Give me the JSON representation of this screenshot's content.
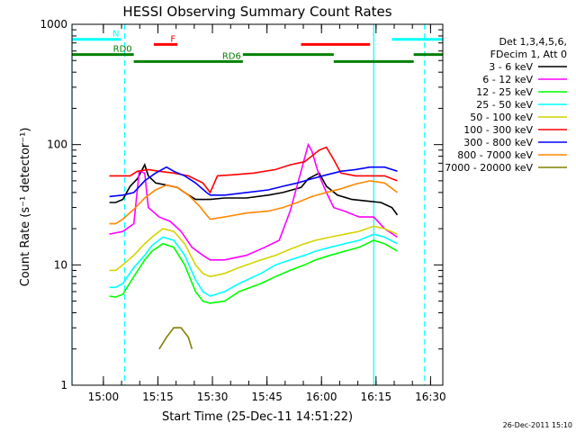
{
  "chart_data": {
    "type": "line",
    "title": "HESSI Observing Summary Count Rates",
    "xlabel": "Start Time (25-Dec-11 14:51:22)",
    "ylabel": "Count Rate (s⁻¹ detector⁻¹)",
    "y_scale": "log",
    "x_unit": "minutes after 14:51:22 (axis printed as clock time)",
    "xlim": [
      0,
      102
    ],
    "ylim": [
      1,
      1000
    ],
    "x_ticks": [
      "15:00",
      "15:15",
      "15:30",
      "15:45",
      "16:00",
      "16:15",
      "16:30"
    ],
    "y_ticks": [
      "1",
      "10",
      "100",
      "1000"
    ],
    "legend": {
      "placement": "right",
      "header": [
        "Det 1,3,4,5,6,",
        "FDecim 1, Att 0"
      ]
    },
    "series": [
      {
        "name": "3 - 6 keV",
        "color": "#000000",
        "points": [
          [
            10.3,
            33
          ],
          [
            12,
            33
          ],
          [
            14,
            35
          ],
          [
            16,
            45
          ],
          [
            18,
            52
          ],
          [
            20,
            68
          ],
          [
            21,
            55
          ],
          [
            23,
            48
          ],
          [
            26,
            46
          ],
          [
            29,
            44
          ],
          [
            31,
            40
          ],
          [
            34,
            35
          ],
          [
            38,
            35
          ],
          [
            42,
            36
          ],
          [
            48,
            36
          ],
          [
            54,
            38
          ],
          [
            58,
            40
          ],
          [
            63,
            44
          ],
          [
            65,
            52
          ],
          [
            68,
            58
          ],
          [
            70,
            45
          ],
          [
            73,
            38
          ],
          [
            77,
            35
          ],
          [
            81,
            34
          ],
          [
            85,
            33
          ],
          [
            88,
            30
          ],
          [
            89.5,
            26
          ]
        ]
      },
      {
        "name": "6 - 12 keV",
        "color": "#ff00ff",
        "points": [
          [
            10.3,
            18
          ],
          [
            14,
            19
          ],
          [
            17,
            22
          ],
          [
            18.5,
            60
          ],
          [
            20,
            58
          ],
          [
            21,
            30
          ],
          [
            24,
            25
          ],
          [
            27,
            23
          ],
          [
            30,
            19
          ],
          [
            33,
            14
          ],
          [
            36,
            12
          ],
          [
            38,
            11
          ],
          [
            42,
            11
          ],
          [
            48,
            12
          ],
          [
            53,
            14
          ],
          [
            57,
            16
          ],
          [
            60,
            28
          ],
          [
            63,
            60
          ],
          [
            65,
            100
          ],
          [
            66,
            88
          ],
          [
            68,
            55
          ],
          [
            70,
            40
          ],
          [
            72,
            30
          ],
          [
            75,
            28
          ],
          [
            79,
            25
          ],
          [
            83,
            25
          ],
          [
            86,
            20
          ],
          [
            89.5,
            17
          ]
        ]
      },
      {
        "name": "12 - 25 keV",
        "color": "#00ff00",
        "points": [
          [
            10.3,
            5.5
          ],
          [
            12,
            5.4
          ],
          [
            14,
            5.7
          ],
          [
            17,
            8
          ],
          [
            20,
            11
          ],
          [
            22,
            13
          ],
          [
            25,
            15
          ],
          [
            28,
            14
          ],
          [
            31,
            10
          ],
          [
            34,
            6
          ],
          [
            36,
            5
          ],
          [
            38,
            4.8
          ],
          [
            42,
            5
          ],
          [
            46,
            6
          ],
          [
            52,
            7
          ],
          [
            56,
            8
          ],
          [
            60,
            9
          ],
          [
            64,
            10
          ],
          [
            67,
            11
          ],
          [
            71,
            12
          ],
          [
            75,
            13
          ],
          [
            79,
            14
          ],
          [
            83,
            16
          ],
          [
            86,
            15
          ],
          [
            89.5,
            13
          ]
        ]
      },
      {
        "name": "25 - 50 keV",
        "color": "#00ffff",
        "points": [
          [
            10.3,
            6.5
          ],
          [
            12,
            6.5
          ],
          [
            14,
            7
          ],
          [
            17,
            9.5
          ],
          [
            20,
            12
          ],
          [
            22,
            14.5
          ],
          [
            25,
            17
          ],
          [
            28,
            16
          ],
          [
            31,
            12
          ],
          [
            34,
            7.5
          ],
          [
            36,
            6
          ],
          [
            38,
            5.5
          ],
          [
            42,
            6
          ],
          [
            46,
            7
          ],
          [
            52,
            8.5
          ],
          [
            56,
            10
          ],
          [
            60,
            11
          ],
          [
            64,
            12
          ],
          [
            67,
            13
          ],
          [
            71,
            14
          ],
          [
            75,
            15
          ],
          [
            79,
            16
          ],
          [
            83,
            18
          ],
          [
            86,
            17
          ],
          [
            89.5,
            15
          ]
        ]
      },
      {
        "name": "50 - 100 keV",
        "color": "#d4d400",
        "points": [
          [
            10.3,
            9
          ],
          [
            12,
            9
          ],
          [
            14,
            10
          ],
          [
            17,
            12
          ],
          [
            20,
            15
          ],
          [
            22,
            17
          ],
          [
            25,
            20
          ],
          [
            28,
            19
          ],
          [
            31,
            15
          ],
          [
            34,
            10
          ],
          [
            36,
            8.5
          ],
          [
            38,
            8
          ],
          [
            42,
            8.5
          ],
          [
            46,
            9.5
          ],
          [
            52,
            11
          ],
          [
            56,
            12
          ],
          [
            60,
            13.5
          ],
          [
            64,
            15
          ],
          [
            67,
            16
          ],
          [
            71,
            17
          ],
          [
            75,
            18
          ],
          [
            79,
            19
          ],
          [
            83,
            21
          ],
          [
            86,
            20
          ],
          [
            89.5,
            18
          ]
        ]
      },
      {
        "name": "100 - 300 keV",
        "color": "#ff0000",
        "points": [
          [
            10.3,
            55
          ],
          [
            16,
            55
          ],
          [
            18,
            60
          ],
          [
            21,
            62
          ],
          [
            24,
            60
          ],
          [
            28,
            58
          ],
          [
            32,
            55
          ],
          [
            36,
            48
          ],
          [
            38,
            40
          ],
          [
            40,
            55
          ],
          [
            44,
            56
          ],
          [
            50,
            58
          ],
          [
            56,
            62
          ],
          [
            60,
            68
          ],
          [
            64,
            72
          ],
          [
            68,
            90
          ],
          [
            70,
            95
          ],
          [
            72,
            75
          ],
          [
            74,
            58
          ],
          [
            78,
            55
          ],
          [
            82,
            55
          ],
          [
            86,
            55
          ],
          [
            89.5,
            50
          ]
        ]
      },
      {
        "name": "300 - 800 keV",
        "color": "#0000ff",
        "points": [
          [
            10.3,
            37
          ],
          [
            14,
            38
          ],
          [
            17,
            40
          ],
          [
            20,
            50
          ],
          [
            23,
            58
          ],
          [
            26,
            65
          ],
          [
            28,
            60
          ],
          [
            31,
            55
          ],
          [
            34,
            48
          ],
          [
            37,
            40
          ],
          [
            38,
            38
          ],
          [
            42,
            38
          ],
          [
            48,
            40
          ],
          [
            54,
            42
          ],
          [
            58,
            45
          ],
          [
            62,
            48
          ],
          [
            66,
            52
          ],
          [
            70,
            56
          ],
          [
            74,
            60
          ],
          [
            78,
            62
          ],
          [
            82,
            65
          ],
          [
            86,
            65
          ],
          [
            89.5,
            60
          ]
        ]
      },
      {
        "name": "800 - 7000 keV",
        "color": "#ff8800",
        "points": [
          [
            10.3,
            22
          ],
          [
            12,
            22
          ],
          [
            14,
            24
          ],
          [
            17,
            29
          ],
          [
            20,
            36
          ],
          [
            23,
            42
          ],
          [
            26,
            46
          ],
          [
            29,
            44
          ],
          [
            32,
            38
          ],
          [
            35,
            31
          ],
          [
            37,
            26
          ],
          [
            38,
            24
          ],
          [
            42,
            25
          ],
          [
            48,
            27
          ],
          [
            54,
            28
          ],
          [
            58,
            30
          ],
          [
            62,
            33
          ],
          [
            66,
            37
          ],
          [
            70,
            40
          ],
          [
            74,
            43
          ],
          [
            78,
            47
          ],
          [
            82,
            50
          ],
          [
            86,
            48
          ],
          [
            89.5,
            40
          ]
        ]
      },
      {
        "name": "7000 - 20000 keV",
        "color": "#808000",
        "points": [
          [
            24,
            2
          ],
          [
            26,
            2.5
          ],
          [
            28,
            3
          ],
          [
            30,
            3
          ],
          [
            32,
            2.5
          ],
          [
            33,
            2
          ]
        ]
      }
    ],
    "annotations": [
      {
        "label": "N",
        "color": "#00ffff",
        "x_range": [
          0,
          13.5
        ],
        "y": 750
      },
      {
        "label": "",
        "color": "#00ffff",
        "x_range": [
          88,
          102
        ],
        "y": 750
      },
      {
        "label": "F",
        "color": "#ff0000",
        "x_range": [
          22.5,
          29
        ],
        "y": 680
      },
      {
        "label": "",
        "color": "#ff0000",
        "x_range": [
          63,
          82
        ],
        "y": 680
      },
      {
        "label": "RD0",
        "color": "#008000",
        "x_range": [
          0,
          17
        ],
        "y": 560
      },
      {
        "label": "RD6",
        "color": "#008000",
        "x_range": [
          17,
          47
        ],
        "y": 490
      },
      {
        "label": "",
        "color": "#008000",
        "x_range": [
          47,
          72
        ],
        "y": 560
      },
      {
        "label": "",
        "color": "#008000",
        "x_range": [
          72,
          94
        ],
        "y": 490
      },
      {
        "label": "",
        "color": "#008000",
        "x_range": [
          94,
          102
        ],
        "y": 560
      }
    ],
    "vertical_markers": [
      {
        "x": 0,
        "color": "#00ffff",
        "style": "solid"
      },
      {
        "x": 14.5,
        "color": "#00ffff",
        "style": "dashed"
      },
      {
        "x": 83,
        "color": "#00ffff",
        "style": "solid"
      },
      {
        "x": 97,
        "color": "#00ffff",
        "style": "dashed"
      }
    ]
  },
  "footer": {
    "timestamp": "26-Dec-2011 15:10"
  }
}
